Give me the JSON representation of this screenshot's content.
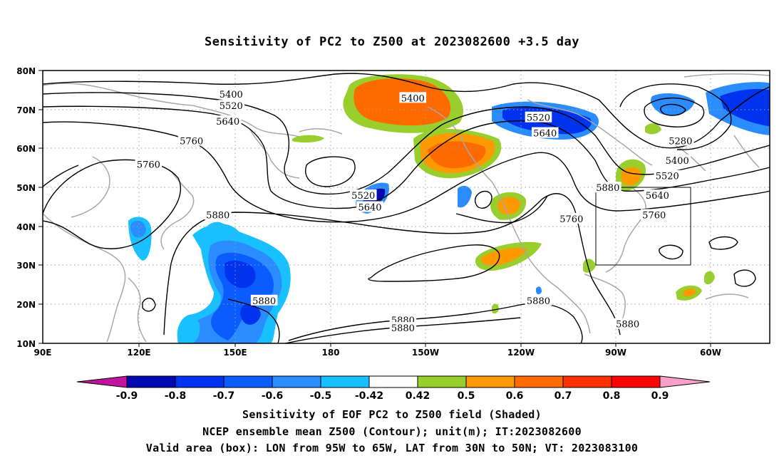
{
  "title": "Sensitivity of PC2 to Z500 at 2023082600 +3.5 day",
  "captions": [
    "Sensitivity of EOF PC2 to Z500 field (Shaded)",
    "NCEP ensemble mean Z500 (Contour); unit(m); IT:2023082600",
    "Valid area (box): LON from 95W to 65W, LAT from 30N to 50N; VT: 2023083100"
  ],
  "map": {
    "lon_range": [
      90,
      310
    ],
    "lat_range": [
      10,
      80
    ],
    "lat_ticks": [
      "80N",
      "70N",
      "60N",
      "50N",
      "40N",
      "30N",
      "20N",
      "10N"
    ],
    "lon_ticks": [
      "90E",
      "120E",
      "150E",
      "180",
      "150W",
      "120W",
      "90W",
      "60W"
    ],
    "grid": true,
    "valid_box": {
      "lon_from": "95W",
      "lon_to": "65W",
      "lat_from": "30N",
      "lat_to": "50N"
    },
    "contour_labels": [
      {
        "text": "5400",
        "lon": 147,
        "lat": 74
      },
      {
        "text": "5520",
        "lon": 147,
        "lat": 71
      },
      {
        "text": "5640",
        "lon": 146,
        "lat": 67
      },
      {
        "text": "5760",
        "lon": 135,
        "lat": 62
      },
      {
        "text": "5760",
        "lon": 122,
        "lat": 56
      },
      {
        "text": "5880",
        "lon": 143,
        "lat": 43
      },
      {
        "text": "5400",
        "lon": 202,
        "lat": 73
      },
      {
        "text": "5520",
        "lon": 240,
        "lat": 68
      },
      {
        "text": "5640",
        "lon": 242,
        "lat": 64
      },
      {
        "text": "5520",
        "lon": 187,
        "lat": 48
      },
      {
        "text": "5640",
        "lon": 189,
        "lat": 45
      },
      {
        "text": "5760",
        "lon": 250,
        "lat": 42
      },
      {
        "text": "5880",
        "lon": 261,
        "lat": 50
      },
      {
        "text": "5280",
        "lon": 283,
        "lat": 62
      },
      {
        "text": "5400",
        "lon": 282,
        "lat": 57
      },
      {
        "text": "5520",
        "lon": 279,
        "lat": 53
      },
      {
        "text": "5640",
        "lon": 276,
        "lat": 48
      },
      {
        "text": "5760",
        "lon": 275,
        "lat": 43
      },
      {
        "text": "5880",
        "lon": 157,
        "lat": 21
      },
      {
        "text": "5880",
        "lon": 199,
        "lat": 16
      },
      {
        "text": "5880",
        "lon": 199,
        "lat": 14
      },
      {
        "text": "5880",
        "lon": 240,
        "lat": 21
      },
      {
        "text": "5880",
        "lon": 267,
        "lat": 15
      }
    ]
  },
  "colorbar": {
    "labels": [
      "-0.9",
      "-0.8",
      "-0.7",
      "-0.6",
      "-0.5",
      "-0.42",
      "0.42",
      "0.5",
      "0.6",
      "0.7",
      "0.8",
      "0.9"
    ],
    "colors": [
      "#c0149c",
      "#0008b0",
      "#0033ee",
      "#0a5cff",
      "#2a8cff",
      "#18c0ff",
      "#ffffff",
      "#98cf2c",
      "#ff9900",
      "#ff6a00",
      "#ff3000",
      "#ff0000",
      "#f8a0c8"
    ]
  }
}
